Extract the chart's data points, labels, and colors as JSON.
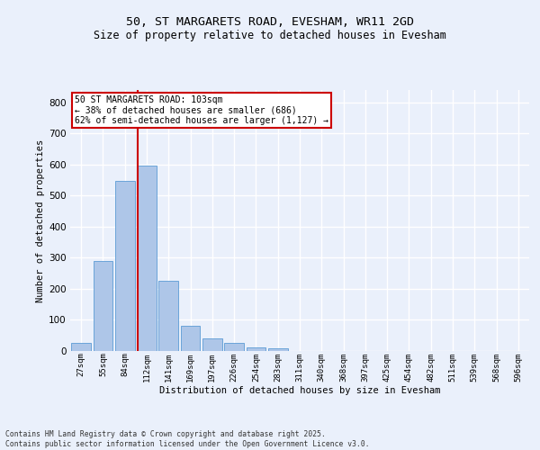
{
  "title_line1": "50, ST MARGARETS ROAD, EVESHAM, WR11 2GD",
  "title_line2": "Size of property relative to detached houses in Evesham",
  "xlabel": "Distribution of detached houses by size in Evesham",
  "ylabel": "Number of detached properties",
  "footer_line1": "Contains HM Land Registry data © Crown copyright and database right 2025.",
  "footer_line2": "Contains public sector information licensed under the Open Government Licence v3.0.",
  "bar_labels": [
    "27sqm",
    "55sqm",
    "84sqm",
    "112sqm",
    "141sqm",
    "169sqm",
    "197sqm",
    "226sqm",
    "254sqm",
    "283sqm",
    "311sqm",
    "340sqm",
    "368sqm",
    "397sqm",
    "425sqm",
    "454sqm",
    "482sqm",
    "511sqm",
    "539sqm",
    "568sqm",
    "596sqm"
  ],
  "bar_values": [
    27,
    290,
    548,
    598,
    225,
    82,
    40,
    27,
    12,
    8,
    0,
    0,
    0,
    0,
    0,
    0,
    0,
    0,
    0,
    0,
    0
  ],
  "bar_color": "#aec6e8",
  "bar_edge_color": "#5b9bd5",
  "background_color": "#eaf0fb",
  "grid_color": "#ffffff",
  "vline_color": "#cc0000",
  "vline_x_index": 2.575,
  "annotation_text": "50 ST MARGARETS ROAD: 103sqm\n← 38% of detached houses are smaller (686)\n62% of semi-detached houses are larger (1,127) →",
  "annotation_box_color": "#ffffff",
  "annotation_box_edge": "#cc0000",
  "ylim": [
    0,
    840
  ],
  "yticks": [
    0,
    100,
    200,
    300,
    400,
    500,
    600,
    700,
    800
  ]
}
